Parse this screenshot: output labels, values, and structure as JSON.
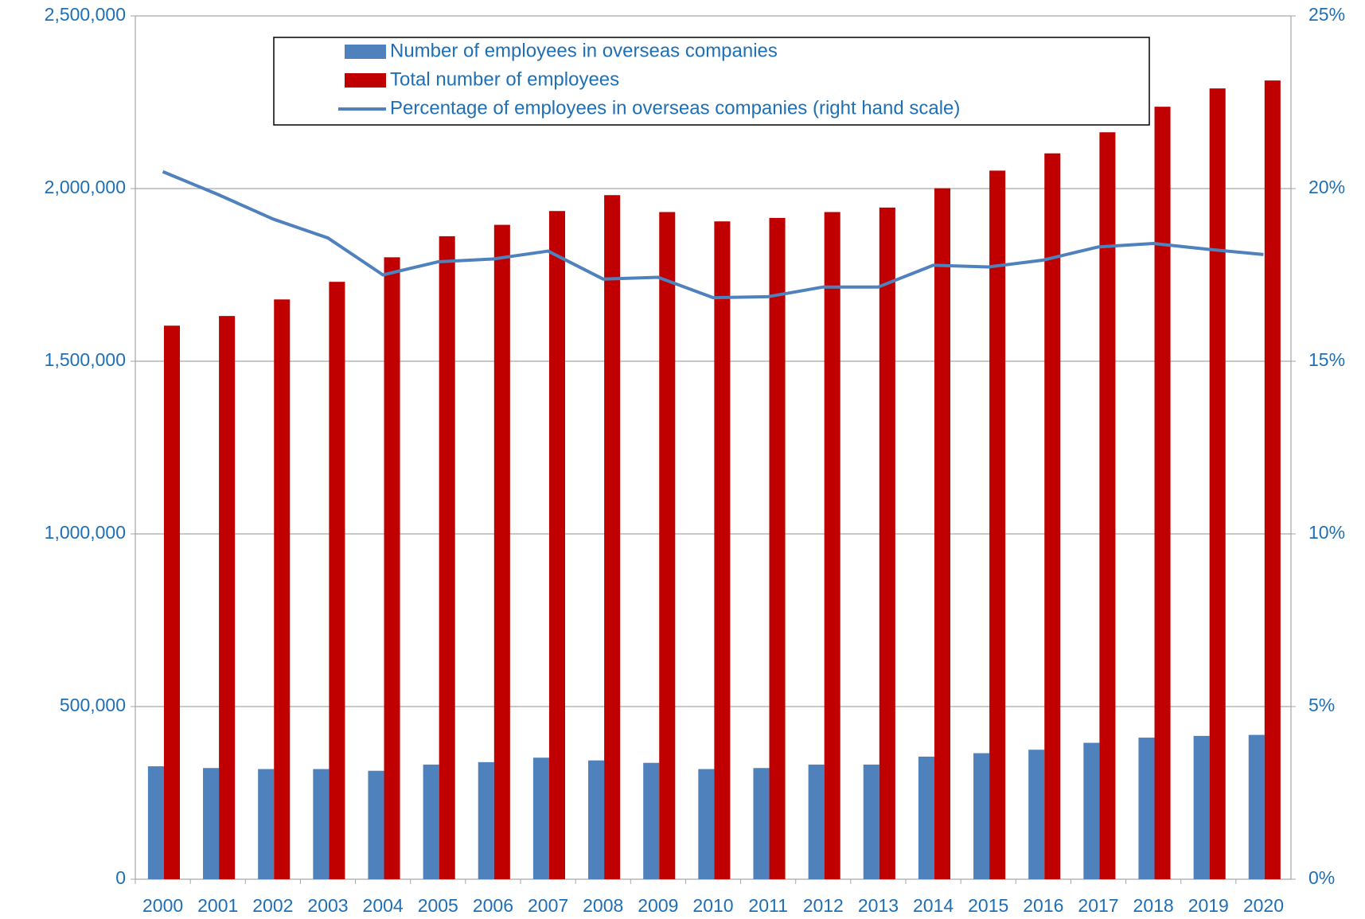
{
  "chart_data": {
    "type": "bar",
    "categories": [
      "2000",
      "2001",
      "2002",
      "2003",
      "2004",
      "2005",
      "2006",
      "2007",
      "2008",
      "2009",
      "2010",
      "2011",
      "2012",
      "2013",
      "2014",
      "2015",
      "2016",
      "2017",
      "2018",
      "2019",
      "2020"
    ],
    "series": [
      {
        "name": "Number of employees in overseas companies",
        "color": "#4f81bd",
        "type": "bar",
        "values": [
          327000,
          322000,
          319000,
          319000,
          314000,
          332000,
          339000,
          352000,
          344000,
          337000,
          319000,
          322000,
          332000,
          332000,
          355000,
          365000,
          375000,
          395000,
          410000,
          415000,
          418000
        ]
      },
      {
        "name": "Total number of employees",
        "color": "#c00000",
        "type": "bar",
        "values": [
          1603000,
          1631000,
          1679000,
          1730000,
          1801000,
          1862000,
          1895000,
          1935000,
          1981000,
          1932000,
          1905000,
          1915000,
          1932000,
          1945000,
          2001000,
          2052000,
          2102000,
          2163000,
          2237000,
          2290000,
          2313000
        ]
      },
      {
        "name": "Percentage of employees in overseas companies (right hand scale)",
        "color": "#4f81bd",
        "type": "line",
        "axis": "y2",
        "values": [
          20.49,
          19.83,
          19.12,
          18.57,
          17.5,
          17.88,
          17.96,
          18.19,
          17.38,
          17.43,
          16.84,
          16.87,
          17.15,
          17.15,
          17.78,
          17.73,
          17.93,
          18.31,
          18.41,
          18.24,
          18.09
        ]
      }
    ],
    "ylim": [
      0,
      2500000
    ],
    "yticks": [
      0,
      {
        "value": 500000,
        "label": "500,000"
      },
      {
        "value": 1000000,
        "label": "1,000,000"
      },
      {
        "value": 1500000,
        "label": "1,500,000"
      },
      {
        "value": 2000000,
        "label": "2,000,000"
      },
      {
        "value": 2500000,
        "label": "2,500,000"
      }
    ],
    "y2lim": [
      0,
      25
    ],
    "y2ticks": [
      {
        "value": 0,
        "label": "0%"
      },
      {
        "value": 5,
        "label": "5%"
      },
      {
        "value": 10,
        "label": "10%"
      },
      {
        "value": 15,
        "label": "15%"
      },
      {
        "value": 20,
        "label": "20%"
      },
      {
        "value": 25,
        "label": "25%"
      }
    ],
    "grid": true,
    "legend": "top"
  }
}
